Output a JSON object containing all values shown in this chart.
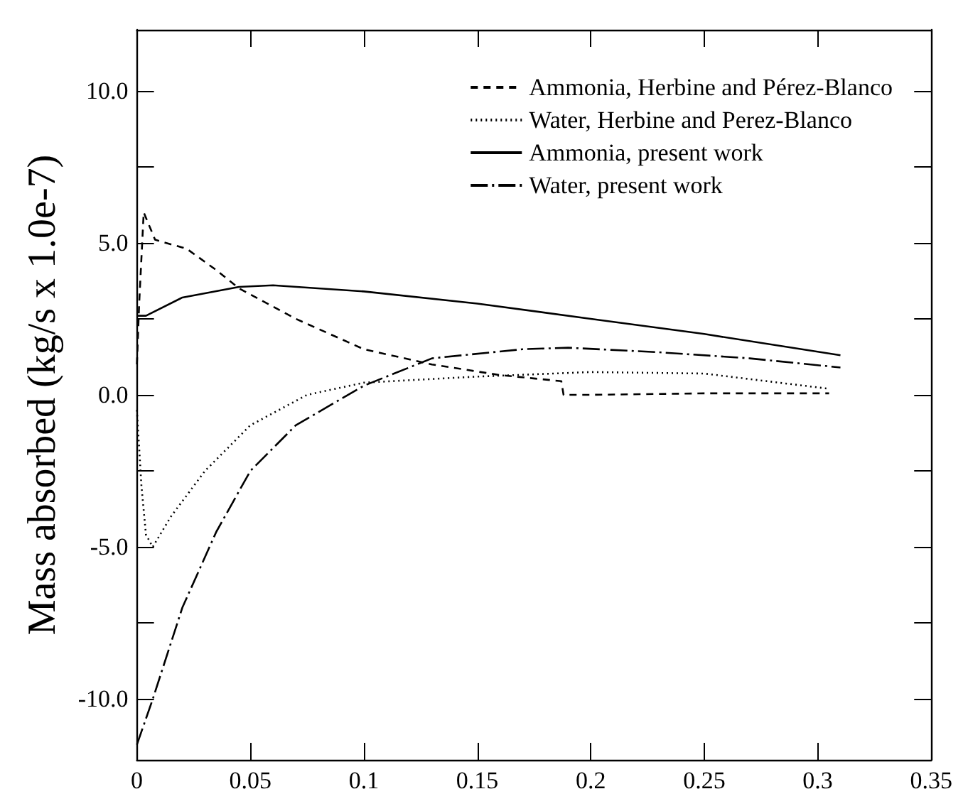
{
  "chart_data": {
    "type": "line",
    "ylabel": "Mass absorbed (kg/s x 1.0e-7)",
    "xlim": [
      0,
      0.35
    ],
    "xticks": [
      0,
      0.05,
      0.1,
      0.15,
      0.2,
      0.25,
      0.3,
      0.35
    ],
    "ylim": [
      -12,
      12
    ],
    "yticks": [
      {
        "value": -10,
        "label": "-10.0"
      },
      {
        "value": -7.5,
        "label": null
      },
      {
        "value": -5,
        "label": "-5.0"
      },
      {
        "value": -2.5,
        "label": null
      },
      {
        "value": 0,
        "label": "0.0"
      },
      {
        "value": 2.5,
        "label": null
      },
      {
        "value": 5,
        "label": "5.0"
      },
      {
        "value": 7.5,
        "label": null
      },
      {
        "value": 10,
        "label": "10.0"
      }
    ],
    "grid": false,
    "legend": "top right",
    "marker": "none",
    "series": [
      {
        "name": "Ammonia, Herbine and Pérez-Blanco",
        "color": "#000000",
        "line_style": "dashed",
        "x": [
          0,
          0.001,
          0.003,
          0.008,
          0.022,
          0.035,
          0.045,
          0.07,
          0.1,
          0.13,
          0.16,
          0.187,
          0.188,
          0.2,
          0.25,
          0.305
        ],
        "values": [
          1.0,
          3.0,
          6.0,
          5.1,
          4.8,
          4.1,
          3.5,
          2.5,
          1.5,
          1.0,
          0.65,
          0.45,
          0.0,
          0.0,
          0.05,
          0.05
        ]
      },
      {
        "name": "Water, Herbine and Perez-Blanco",
        "color": "#000000",
        "line_style": "dotted",
        "x": [
          0,
          0.002,
          0.004,
          0.007,
          0.015,
          0.03,
          0.05,
          0.075,
          0.1,
          0.15,
          0.2,
          0.25,
          0.305
        ],
        "values": [
          -0.5,
          -3.0,
          -4.6,
          -5.0,
          -4.0,
          -2.5,
          -1.0,
          0.0,
          0.4,
          0.6,
          0.75,
          0.7,
          0.2
        ]
      },
      {
        "name": "Ammonia, present work",
        "color": "#000000",
        "line_style": "solid",
        "x": [
          0,
          0.004,
          0.02,
          0.045,
          0.06,
          0.1,
          0.15,
          0.2,
          0.25,
          0.31
        ],
        "values": [
          2.6,
          2.6,
          3.2,
          3.55,
          3.6,
          3.4,
          3.0,
          2.5,
          2.0,
          1.3
        ]
      },
      {
        "name": "Water, present work",
        "color": "#000000",
        "line_style": "dashdot",
        "x": [
          0,
          0.007,
          0.02,
          0.035,
          0.05,
          0.07,
          0.1,
          0.13,
          0.17,
          0.19,
          0.23,
          0.27,
          0.31
        ],
        "values": [
          -11.5,
          -10,
          -7,
          -4.5,
          -2.5,
          -1.0,
          0.3,
          1.2,
          1.5,
          1.55,
          1.4,
          1.2,
          0.9
        ]
      }
    ]
  }
}
